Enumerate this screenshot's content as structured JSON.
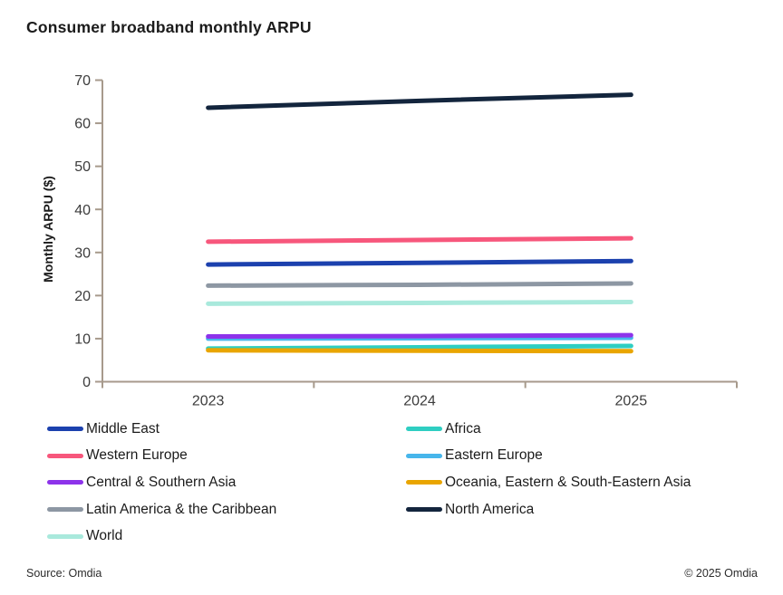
{
  "title": "Consumer broadband monthly ARPU",
  "footer": {
    "source": "Source: Omdia",
    "copyright": "© 2025 Omdia"
  },
  "chart_data": {
    "type": "line",
    "title": "Consumer broadband monthly ARPU",
    "xlabel": "",
    "ylabel": "Monthly ARPU ($)",
    "categories": [
      "2023",
      "2024",
      "2025"
    ],
    "ylim": [
      0,
      70
    ],
    "ytick_step": 10,
    "grid": false,
    "legend_position": "bottom",
    "axis_color": "#a79a8c",
    "tick_label_color": "#3c3c3c",
    "series": [
      {
        "name": "Eastern Europe",
        "color": "#47b6eb",
        "values": [
          10.0,
          10.1,
          10.2
        ]
      },
      {
        "name": "Africa",
        "color": "#2fcec2",
        "values": [
          7.7,
          8.0,
          8.3
        ]
      },
      {
        "name": "Oceania, Eastern & South-Eastern Asia",
        "color": "#e9a500",
        "values": [
          7.3,
          7.2,
          7.1
        ]
      },
      {
        "name": "Central & Southern Asia",
        "color": "#8d33ea",
        "values": [
          10.5,
          10.6,
          10.8
        ]
      },
      {
        "name": "World",
        "color": "#a9e9dc",
        "values": [
          18.1,
          18.3,
          18.5
        ]
      },
      {
        "name": "Latin America & the Caribbean",
        "color": "#8d97a3",
        "values": [
          22.3,
          22.5,
          22.8
        ]
      },
      {
        "name": "Middle East",
        "color": "#1c41ae",
        "values": [
          27.2,
          27.6,
          28.0
        ]
      },
      {
        "name": "Western Europe",
        "color": "#f7577c",
        "values": [
          32.5,
          32.9,
          33.3
        ]
      },
      {
        "name": "North America",
        "color": "#13253d",
        "values": [
          63.6,
          65.2,
          66.6
        ]
      }
    ],
    "legend_columns": [
      [
        "Middle East",
        "Western Europe",
        "Central & Southern Asia",
        "Latin America & the Caribbean",
        "World"
      ],
      [
        "Africa",
        "Eastern Europe",
        "Oceania, Eastern & South-Eastern Asia",
        "North America"
      ]
    ]
  }
}
